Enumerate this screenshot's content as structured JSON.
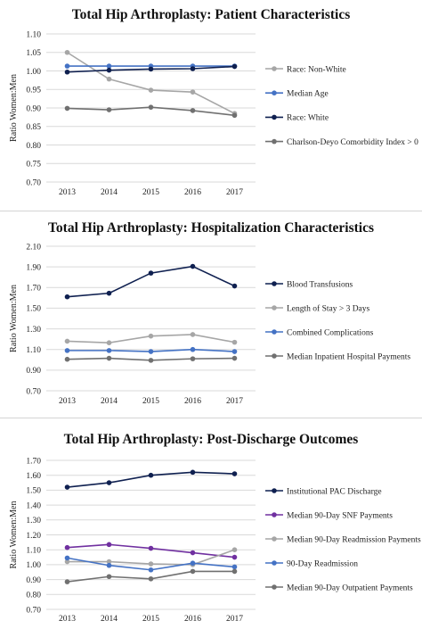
{
  "chart_data": [
    {
      "type": "line",
      "title": "Total Hip Arthroplasty: Patient Characteristics",
      "ylabel": "Ratio Women:Men",
      "xlabel": "",
      "x": [
        "2013",
        "2014",
        "2015",
        "2016",
        "2017"
      ],
      "ylim": [
        0.7,
        1.1
      ],
      "yticks": [
        "0.70",
        "0.75",
        "0.80",
        "0.85",
        "0.90",
        "0.95",
        "1.00",
        "1.05",
        "1.10"
      ],
      "grid": true,
      "legend": "right",
      "series": [
        {
          "name": "Race: Non-White",
          "color": "#a6a6a6",
          "values": [
            1.05,
            0.978,
            0.948,
            0.943,
            0.885
          ]
        },
        {
          "name": "Median Age",
          "color": "#4472c4",
          "values": [
            1.013,
            1.013,
            1.013,
            1.013,
            1.013
          ]
        },
        {
          "name": "Race: White",
          "color": "#0f2050",
          "values": [
            0.997,
            1.002,
            1.005,
            1.006,
            1.012
          ]
        },
        {
          "name": "Charlson-Deyo Comorbidity Index > 0",
          "color": "#707070",
          "values": [
            0.899,
            0.895,
            0.902,
            0.893,
            0.88
          ]
        }
      ]
    },
    {
      "type": "line",
      "title": "Total Hip Arthroplasty: Hospitalization Characteristics",
      "ylabel": "Ratio Women:Men",
      "xlabel": "",
      "x": [
        "2013",
        "2014",
        "2015",
        "2016",
        "2017"
      ],
      "ylim": [
        0.7,
        2.1
      ],
      "yticks": [
        "0.70",
        "0.90",
        "1.10",
        "1.30",
        "1.50",
        "1.70",
        "1.90",
        "2.10"
      ],
      "grid": true,
      "legend": "right",
      "series": [
        {
          "name": "Blood Transfusions",
          "color": "#0f2050",
          "values": [
            1.61,
            1.645,
            1.84,
            1.905,
            1.715
          ]
        },
        {
          "name": "Length of Stay > 3 Days",
          "color": "#a6a6a6",
          "values": [
            1.18,
            1.165,
            1.23,
            1.245,
            1.17
          ]
        },
        {
          "name": "Combined Complications",
          "color": "#4472c4",
          "values": [
            1.09,
            1.09,
            1.08,
            1.1,
            1.08
          ]
        },
        {
          "name": "Median Inpatient Hospital Payments",
          "color": "#707070",
          "values": [
            1.005,
            1.015,
            0.995,
            1.01,
            1.015
          ]
        }
      ]
    },
    {
      "type": "line",
      "title": "Total Hip Arthroplasty: Post-Discharge Outcomes",
      "ylabel": "Ratio Women:Men",
      "xlabel": "",
      "x": [
        "2013",
        "2014",
        "2015",
        "2016",
        "2017"
      ],
      "ylim": [
        0.7,
        1.7
      ],
      "yticks": [
        "0.70",
        "0.80",
        "0.90",
        "1.00",
        "1.10",
        "1.20",
        "1.30",
        "1.40",
        "1.50",
        "1.60",
        "1.70"
      ],
      "grid": true,
      "legend": "right",
      "series": [
        {
          "name": "Institutional PAC Discharge",
          "color": "#0f2050",
          "values": [
            1.52,
            1.55,
            1.6,
            1.62,
            1.61
          ]
        },
        {
          "name": "Median 90-Day SNF Payments",
          "color": "#7030a0",
          "values": [
            1.115,
            1.135,
            1.11,
            1.08,
            1.05
          ]
        },
        {
          "name": "Median 90-Day Readmission Payments",
          "color": "#a6a6a6",
          "values": [
            1.02,
            1.02,
            1.005,
            1.0,
            1.1
          ]
        },
        {
          "name": "90-Day Readmission",
          "color": "#4472c4",
          "values": [
            1.045,
            0.995,
            0.965,
            1.01,
            0.985
          ]
        },
        {
          "name": "Median 90-Day Outpatient Payments",
          "color": "#707070",
          "values": [
            0.885,
            0.92,
            0.905,
            0.955,
            0.955
          ]
        }
      ]
    }
  ]
}
